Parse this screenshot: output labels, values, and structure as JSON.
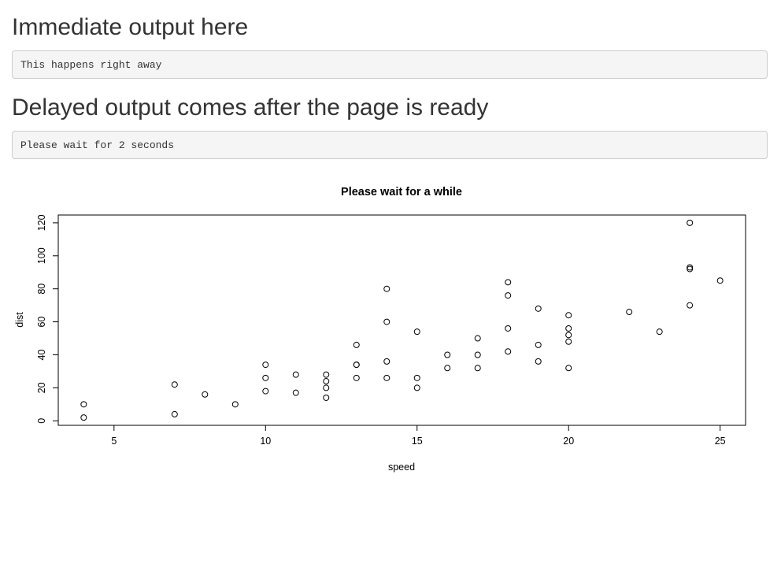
{
  "sections": {
    "immediate": {
      "heading": "Immediate output here",
      "output": "This happens right away"
    },
    "delayed": {
      "heading": "Delayed output comes after the page is ready",
      "output": "Please wait for 2 seconds"
    }
  },
  "chart_data": {
    "type": "scatter",
    "title": "Please wait for a while",
    "xlabel": "speed",
    "ylabel": "dist",
    "x_ticks": [
      5,
      10,
      15,
      20,
      25
    ],
    "y_ticks": [
      0,
      20,
      40,
      60,
      80,
      100,
      120
    ],
    "xlim": [
      3.16,
      25.84
    ],
    "ylim": [
      -2.72,
      124.72
    ],
    "grid": false,
    "marker": "open-circle",
    "colors": {
      "points": "#000000",
      "axes": "#000000"
    },
    "points": [
      [
        4,
        2
      ],
      [
        4,
        10
      ],
      [
        7,
        4
      ],
      [
        7,
        22
      ],
      [
        8,
        16
      ],
      [
        9,
        10
      ],
      [
        10,
        18
      ],
      [
        10,
        26
      ],
      [
        10,
        34
      ],
      [
        11,
        17
      ],
      [
        11,
        28
      ],
      [
        12,
        14
      ],
      [
        12,
        20
      ],
      [
        12,
        24
      ],
      [
        12,
        28
      ],
      [
        13,
        26
      ],
      [
        13,
        34
      ],
      [
        13,
        34
      ],
      [
        13,
        46
      ],
      [
        14,
        26
      ],
      [
        14,
        36
      ],
      [
        14,
        60
      ],
      [
        14,
        80
      ],
      [
        15,
        20
      ],
      [
        15,
        26
      ],
      [
        15,
        54
      ],
      [
        16,
        32
      ],
      [
        16,
        40
      ],
      [
        17,
        32
      ],
      [
        17,
        40
      ],
      [
        17,
        50
      ],
      [
        18,
        42
      ],
      [
        18,
        56
      ],
      [
        18,
        76
      ],
      [
        18,
        84
      ],
      [
        19,
        36
      ],
      [
        19,
        46
      ],
      [
        19,
        68
      ],
      [
        20,
        32
      ],
      [
        20,
        48
      ],
      [
        20,
        52
      ],
      [
        20,
        56
      ],
      [
        20,
        64
      ],
      [
        22,
        66
      ],
      [
        23,
        54
      ],
      [
        24,
        70
      ],
      [
        24,
        92
      ],
      [
        24,
        93
      ],
      [
        24,
        120
      ],
      [
        25,
        85
      ]
    ]
  }
}
